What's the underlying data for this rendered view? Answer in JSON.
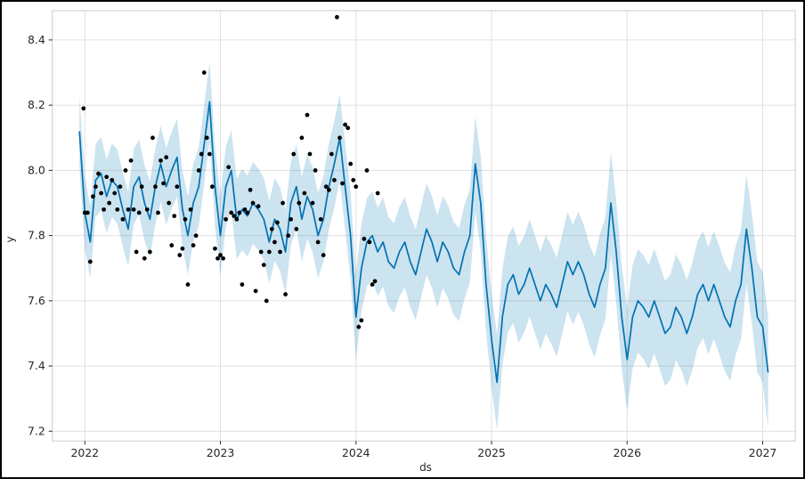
{
  "figure": {
    "background": "#ffffff",
    "border_color": "#000000"
  },
  "chart_data": {
    "type": "line",
    "title": "",
    "subtitle": "",
    "xlabel": "ds",
    "ylabel": "y",
    "legend": "none",
    "grid": true,
    "xlim": [
      2021.76,
      2027.24
    ],
    "ylim": [
      7.17,
      8.49
    ],
    "x_ticks": [
      2022,
      2023,
      2024,
      2025,
      2026,
      2027
    ],
    "y_ticks": [
      7.2,
      7.4,
      7.6,
      7.8,
      8.0,
      8.2,
      8.4
    ],
    "colors": {
      "forecast_line": "#0072B2",
      "uncertainty_band": "#0072B2",
      "band_opacity": 0.2,
      "observed_dots": "#000000",
      "grid_line": "#e0e0e0",
      "axes_frame": "#cccccc",
      "tick_text": "#262626"
    },
    "forecast": {
      "name": "yhat-with-uncertainty-interval",
      "x_start": 2021.96,
      "x_step": 0.04,
      "band_halfwidth_start": 0.11,
      "band_halfwidth_end": 0.17,
      "yhat": [
        8.12,
        7.87,
        7.78,
        7.97,
        7.99,
        7.92,
        7.97,
        7.95,
        7.88,
        7.82,
        7.95,
        7.98,
        7.9,
        7.85,
        7.95,
        8.02,
        7.95,
        8.0,
        8.04,
        7.88,
        7.8,
        7.9,
        7.95,
        8.08,
        8.21,
        7.95,
        7.8,
        7.95,
        8.0,
        7.85,
        7.88,
        7.86,
        7.9,
        7.88,
        7.85,
        7.78,
        7.85,
        7.82,
        7.75,
        7.9,
        7.95,
        7.85,
        7.92,
        7.88,
        7.8,
        7.85,
        7.95,
        8.02,
        8.1,
        7.95,
        7.8,
        7.55,
        7.7,
        7.78,
        7.8,
        7.75,
        7.78,
        7.72,
        7.7,
        7.75,
        7.78,
        7.72,
        7.68,
        7.75,
        7.82,
        7.78,
        7.72,
        7.78,
        7.75,
        7.7,
        7.68,
        7.75,
        7.8,
        8.02,
        7.9,
        7.65,
        7.48,
        7.35,
        7.55,
        7.65,
        7.68,
        7.62,
        7.65,
        7.7,
        7.65,
        7.6,
        7.65,
        7.62,
        7.58,
        7.65,
        7.72,
        7.68,
        7.72,
        7.68,
        7.62,
        7.58,
        7.65,
        7.7,
        7.9,
        7.75,
        7.55,
        7.42,
        7.55,
        7.6,
        7.58,
        7.55,
        7.6,
        7.55,
        7.5,
        7.52,
        7.58,
        7.55,
        7.5,
        7.55,
        7.62,
        7.65,
        7.6,
        7.65,
        7.6,
        7.55,
        7.52,
        7.6,
        7.65,
        7.82,
        7.7,
        7.55,
        7.52,
        7.38
      ]
    },
    "observed": {
      "name": "historical-data-points",
      "points": [
        [
          2021.99,
          8.19
        ],
        [
          2022.0,
          7.87
        ],
        [
          2022.02,
          7.87
        ],
        [
          2022.04,
          7.72
        ],
        [
          2022.06,
          7.92
        ],
        [
          2022.08,
          7.95
        ],
        [
          2022.1,
          7.99
        ],
        [
          2022.12,
          7.93
        ],
        [
          2022.14,
          7.88
        ],
        [
          2022.16,
          7.98
        ],
        [
          2022.18,
          7.9
        ],
        [
          2022.2,
          7.97
        ],
        [
          2022.22,
          7.93
        ],
        [
          2022.24,
          7.88
        ],
        [
          2022.26,
          7.95
        ],
        [
          2022.28,
          7.85
        ],
        [
          2022.3,
          8.0
        ],
        [
          2022.32,
          7.88
        ],
        [
          2022.34,
          8.03
        ],
        [
          2022.36,
          7.88
        ],
        [
          2022.38,
          7.75
        ],
        [
          2022.4,
          7.87
        ],
        [
          2022.42,
          7.95
        ],
        [
          2022.44,
          7.73
        ],
        [
          2022.46,
          7.88
        ],
        [
          2022.48,
          7.75
        ],
        [
          2022.5,
          8.1
        ],
        [
          2022.52,
          7.95
        ],
        [
          2022.54,
          7.87
        ],
        [
          2022.56,
          8.03
        ],
        [
          2022.58,
          7.96
        ],
        [
          2022.6,
          8.04
        ],
        [
          2022.62,
          7.9
        ],
        [
          2022.64,
          7.77
        ],
        [
          2022.66,
          7.86
        ],
        [
          2022.68,
          7.95
        ],
        [
          2022.7,
          7.74
        ],
        [
          2022.72,
          7.76
        ],
        [
          2022.74,
          7.85
        ],
        [
          2022.76,
          7.65
        ],
        [
          2022.78,
          7.88
        ],
        [
          2022.8,
          7.77
        ],
        [
          2022.82,
          7.8
        ],
        [
          2022.84,
          8.0
        ],
        [
          2022.86,
          8.05
        ],
        [
          2022.88,
          8.3
        ],
        [
          2022.9,
          8.1
        ],
        [
          2022.92,
          8.05
        ],
        [
          2022.94,
          7.95
        ],
        [
          2022.96,
          7.76
        ],
        [
          2022.98,
          7.73
        ],
        [
          2023.0,
          7.74
        ],
        [
          2023.02,
          7.73
        ],
        [
          2023.04,
          7.85
        ],
        [
          2023.06,
          8.01
        ],
        [
          2023.08,
          7.87
        ],
        [
          2023.1,
          7.86
        ],
        [
          2023.12,
          7.85
        ],
        [
          2023.14,
          7.87
        ],
        [
          2023.16,
          7.65
        ],
        [
          2023.18,
          7.88
        ],
        [
          2023.2,
          7.87
        ],
        [
          2023.22,
          7.94
        ],
        [
          2023.24,
          7.9
        ],
        [
          2023.26,
          7.63
        ],
        [
          2023.28,
          7.89
        ],
        [
          2023.3,
          7.75
        ],
        [
          2023.32,
          7.71
        ],
        [
          2023.34,
          7.6
        ],
        [
          2023.36,
          7.75
        ],
        [
          2023.38,
          7.82
        ],
        [
          2023.4,
          7.78
        ],
        [
          2023.42,
          7.84
        ],
        [
          2023.44,
          7.75
        ],
        [
          2023.46,
          7.9
        ],
        [
          2023.48,
          7.62
        ],
        [
          2023.5,
          7.8
        ],
        [
          2023.52,
          7.85
        ],
        [
          2023.54,
          8.05
        ],
        [
          2023.56,
          7.82
        ],
        [
          2023.58,
          7.9
        ],
        [
          2023.6,
          8.1
        ],
        [
          2023.62,
          7.93
        ],
        [
          2023.64,
          8.17
        ],
        [
          2023.66,
          8.05
        ],
        [
          2023.68,
          7.9
        ],
        [
          2023.7,
          8.0
        ],
        [
          2023.72,
          7.78
        ],
        [
          2023.74,
          7.85
        ],
        [
          2023.76,
          7.74
        ],
        [
          2023.78,
          7.95
        ],
        [
          2023.8,
          7.94
        ],
        [
          2023.82,
          8.05
        ],
        [
          2023.84,
          7.97
        ],
        [
          2023.86,
          8.47
        ],
        [
          2023.88,
          8.1
        ],
        [
          2023.9,
          7.96
        ],
        [
          2023.92,
          8.14
        ],
        [
          2023.94,
          8.13
        ],
        [
          2023.96,
          8.02
        ],
        [
          2023.98,
          7.97
        ],
        [
          2024.0,
          7.95
        ],
        [
          2024.02,
          7.52
        ],
        [
          2024.04,
          7.54
        ],
        [
          2024.06,
          7.79
        ],
        [
          2024.08,
          8.0
        ],
        [
          2024.1,
          7.78
        ],
        [
          2024.12,
          7.65
        ],
        [
          2024.14,
          7.66
        ],
        [
          2024.16,
          7.93
        ]
      ]
    }
  }
}
